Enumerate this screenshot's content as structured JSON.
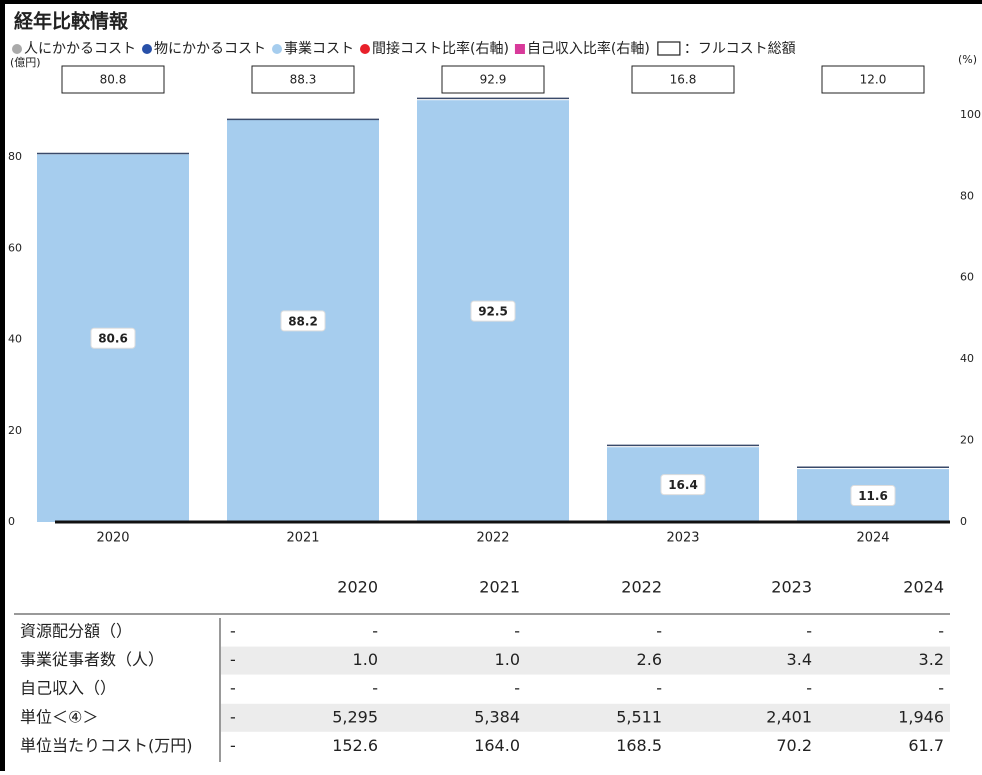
{
  "chart_data": {
    "type": "bar",
    "title": "経年比較情報",
    "y_label": "(億円)",
    "y2_label": "(%)",
    "legend": [
      {
        "name": "人にかかるコスト",
        "color": "#aaaaaa",
        "marker": "circle"
      },
      {
        "name": "物にかかるコスト",
        "color": "#2850a8",
        "marker": "circle"
      },
      {
        "name": "事業コスト",
        "color": "#a6cdee",
        "marker": "circle"
      },
      {
        "name": "間接コスト比率(右軸)",
        "color": "#e8202a",
        "marker": "circle"
      },
      {
        "name": "自己収入比率(右軸)",
        "color": "#d83a9a",
        "marker": "square"
      },
      {
        "name": "：フルコスト総額",
        "color": "#222222",
        "marker": "box"
      }
    ],
    "categories": [
      "2020",
      "2021",
      "2022",
      "2023",
      "2024"
    ],
    "series": [
      {
        "name": "事業コスト",
        "color": "#a6cdee",
        "values": [
          80.6,
          88.2,
          92.5,
          16.4,
          11.6
        ]
      }
    ],
    "full_cost": {
      "values": [
        80.8,
        88.3,
        92.9,
        16.8,
        12
      ],
      "value_labels": [
        "80.8",
        "88.3",
        "92.9",
        "16.8",
        "12.0"
      ]
    },
    "ylim": [
      0,
      100
    ],
    "yticks": [
      0,
      20,
      40,
      60,
      80
    ],
    "y2lim": [
      0,
      112
    ],
    "y2ticks": [
      0,
      20,
      40,
      60,
      80,
      100
    ]
  },
  "table": {
    "headers": [
      "2020",
      "2021",
      "2022",
      "2023",
      "2024"
    ],
    "rows": [
      [
        "資源配分額（）",
        "-",
        "-",
        "-",
        "-",
        "-",
        "-"
      ],
      [
        "事業従事者数（人）",
        "-",
        "1.0",
        "1.0",
        "2.6",
        "3.4",
        "3.2"
      ],
      [
        "自己収入（）",
        "-",
        "-",
        "-",
        "-",
        "-",
        "-"
      ],
      [
        "単位＜④＞",
        "-",
        "5,295",
        "5,384",
        "5,511",
        "2,401",
        "1,946"
      ],
      [
        "単位当たりコスト(万円)",
        "-",
        "152.6",
        "164.0",
        "168.5",
        "70.2",
        "61.7"
      ]
    ]
  }
}
